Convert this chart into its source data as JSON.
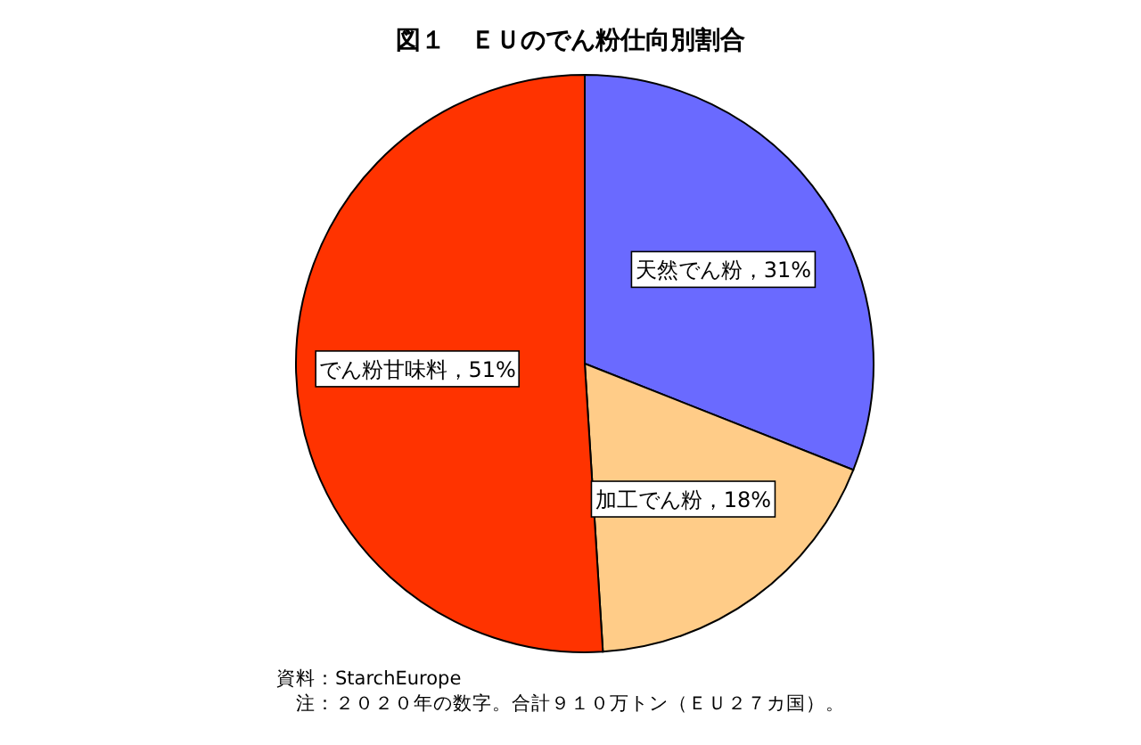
{
  "chart_data": {
    "type": "pie",
    "title": "図１　ＥＵのでん粉仕向別割合",
    "categories": [
      "天然でん粉",
      "加工でん粉",
      "でん粉甘味料"
    ],
    "values": [
      31,
      18,
      51
    ],
    "colors": [
      "#6a6aff",
      "#ffcc88",
      "#ff3300"
    ],
    "value_labels": [
      "，31%",
      "，18%",
      "，51%"
    ],
    "annotations": [
      "資料：StarchEurope",
      "　注：２０２０年の数字。合計９１０万トン（ＥＵ２７カ国）。"
    ]
  }
}
